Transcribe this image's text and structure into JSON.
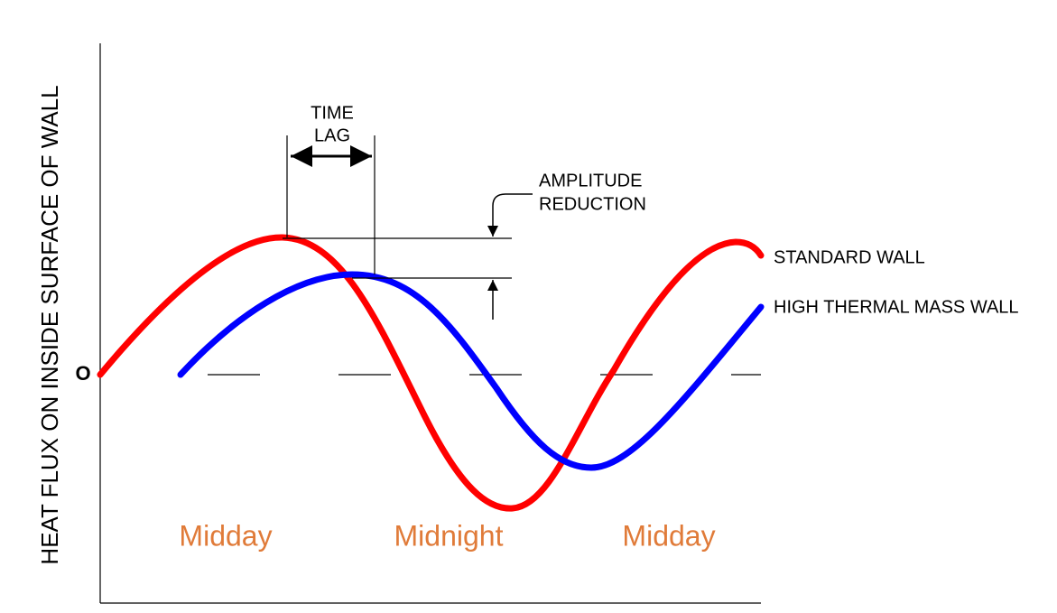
{
  "y_axis_label": "HEAT FLUX ON INSIDE SURFACE OF WALL",
  "zero_label": "O",
  "annotations": {
    "time_lag": [
      "TIME",
      "LAG"
    ],
    "amplitude_reduction": [
      "AMPLITUDE",
      "REDUCTION"
    ]
  },
  "legend": {
    "standard_wall": "STANDARD WALL",
    "high_mass_wall": "HIGH THERMAL MASS WALL"
  },
  "time_labels": [
    "Midday",
    "Midnight",
    "Midday"
  ]
}
